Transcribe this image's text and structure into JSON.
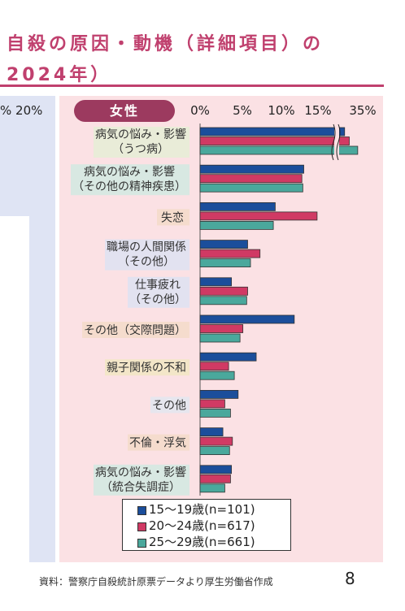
{
  "header": {
    "title_line1": "自殺の原因・動機（詳細項目）の",
    "title_line2": "2024年）"
  },
  "left_panel": {
    "ticks": [
      "% 20%"
    ]
  },
  "badge": "女性",
  "chart_data": {
    "type": "bar",
    "orientation": "horizontal",
    "x_ticks": [
      "0%",
      "5%",
      "10%",
      "15%",
      "35%"
    ],
    "axis_break_between": [
      "15%",
      "35%"
    ],
    "xlim": [
      0,
      35
    ],
    "categories": [
      [
        "病気の悩み・影響",
        "（うつ病）"
      ],
      [
        "病気の悩み・影響",
        "（その他の精神疾患）"
      ],
      [
        "失恋"
      ],
      [
        "職場の人間関係",
        "（その他）"
      ],
      [
        "仕事疲れ",
        "（その他）"
      ],
      [
        "その他（交際問題）"
      ],
      [
        "親子関係の不和"
      ],
      [
        "その他"
      ],
      [
        "不倫・浮気"
      ],
      [
        "病気の悩み・影響",
        "（統合失調症）"
      ]
    ],
    "category_colors": [
      "#e9ecd8",
      "#d8e8e2",
      "#f5dccd",
      "#e2e2f0",
      "#e2e2f0",
      "#f5dccd",
      "#f3e6c8",
      "#e6e6ee",
      "#f5dccd",
      "#d8e8e2"
    ],
    "series": [
      {
        "name": "15～19歳(n=101)",
        "color": "#1b4e9b",
        "values": [
          33.5,
          10.9,
          7.9,
          5.0,
          3.3,
          9.9,
          5.9,
          4.0,
          2.4,
          3.3
        ]
      },
      {
        "name": "20～24歳(n=617)",
        "color": "#d03a64",
        "values": [
          34.0,
          10.7,
          12.3,
          6.3,
          5.0,
          4.5,
          3.0,
          2.6,
          3.4,
          3.2
        ]
      },
      {
        "name": "25～29歳(n=661)",
        "color": "#4aa89c",
        "values": [
          34.9,
          10.8,
          7.7,
          5.3,
          4.9,
          4.2,
          3.6,
          3.2,
          3.1,
          2.6
        ]
      }
    ]
  },
  "source": "資料：警察庁自殺統計原票データより厚生労働省作成",
  "page_number": "8"
}
